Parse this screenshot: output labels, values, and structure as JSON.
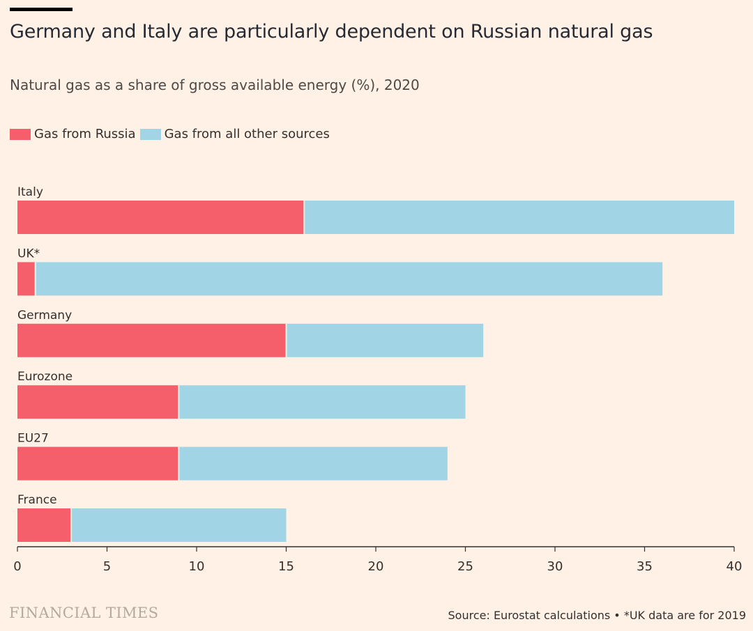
{
  "header": {
    "title": "Germany and Italy are particularly dependent on Russian natural gas",
    "subtitle": "Natural gas as a share of gross available energy (%), 2020"
  },
  "legend": {
    "items": [
      {
        "label": "Gas from Russia",
        "color": "#f45f6b"
      },
      {
        "label": "Gas from all other sources",
        "color": "#a1d5e6"
      }
    ]
  },
  "chart_data": {
    "type": "bar",
    "orientation": "horizontal",
    "stacked": true,
    "categories": [
      "Italy",
      "UK*",
      "Germany",
      "Eurozone",
      "EU27",
      "France"
    ],
    "series": [
      {
        "name": "Gas from Russia",
        "values": [
          16,
          1,
          15,
          9,
          9,
          3
        ],
        "color": "#f45f6b"
      },
      {
        "name": "Gas from all other sources",
        "values": [
          24,
          35,
          11,
          16,
          15,
          12
        ],
        "color": "#a1d5e6"
      }
    ],
    "xlim": [
      0,
      40
    ],
    "xticks": [
      "0",
      "5",
      "10",
      "15",
      "20",
      "25",
      "30",
      "35",
      "40"
    ],
    "legend_position": "top-left",
    "grid": false
  },
  "footer": {
    "branding": "FINANCIAL TIMES",
    "source": "Source: Eurostat calculations • *UK data are for 2019"
  }
}
